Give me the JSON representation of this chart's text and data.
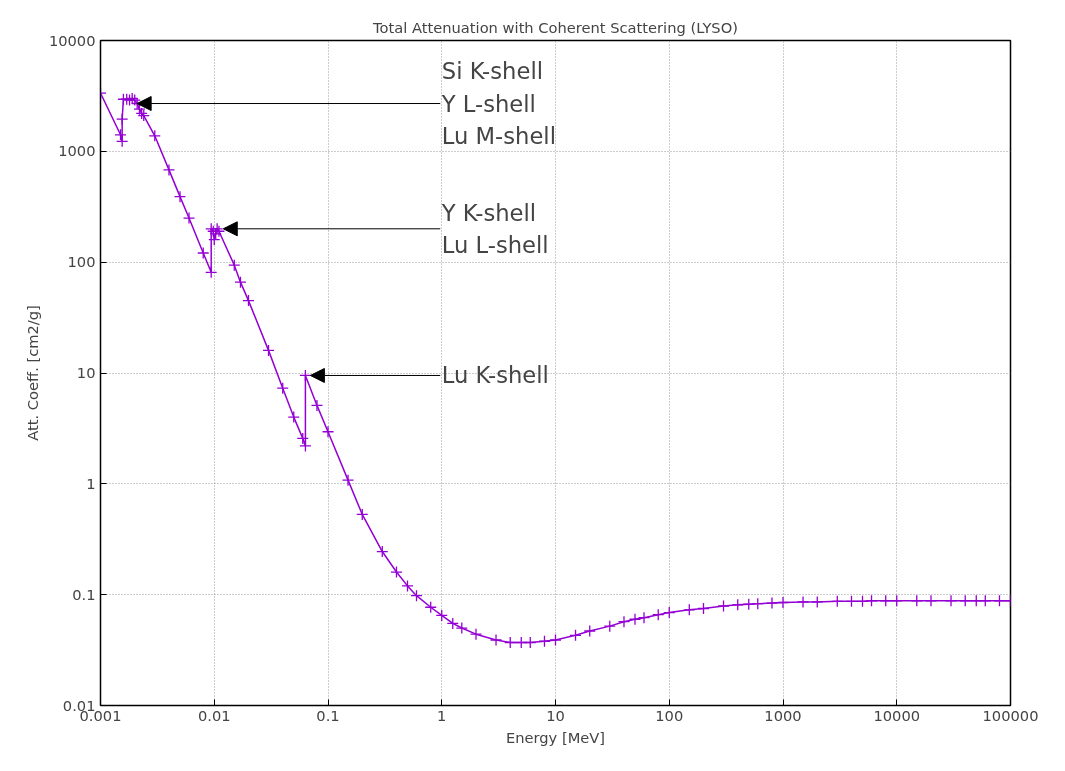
{
  "chart_data": {
    "type": "line",
    "title": "Total Attenuation with Coherent Scattering (LYSO)",
    "xlabel": "Energy [MeV]",
    "ylabel": "Att. Coeff. [cm2/g]",
    "log": "xy",
    "grid": true,
    "marker": "cross",
    "line_style": "solid",
    "xlim": [
      0.001,
      100000
    ],
    "ylim": [
      0.01,
      10000
    ],
    "xticks": [
      0.001,
      0.01,
      0.1,
      1,
      10,
      100,
      1000,
      10000,
      100000
    ],
    "yticks": [
      0.01,
      0.1,
      1,
      10,
      100,
      1000,
      10000
    ],
    "x": [
      0.001,
      0.0015,
      0.00155,
      0.00155,
      0.00159,
      0.0017,
      0.0018,
      0.0019,
      0.002,
      0.0021,
      0.0022,
      0.0023,
      0.0024,
      0.003,
      0.004,
      0.005,
      0.006,
      0.008,
      0.0094,
      0.0094,
      0.0098,
      0.01,
      0.0103,
      0.0106,
      0.011,
      0.015,
      0.017,
      0.02,
      0.03,
      0.04,
      0.05,
      0.06,
      0.0633,
      0.0633,
      0.08,
      0.1,
      0.15,
      0.2,
      0.3,
      0.4,
      0.5,
      0.6,
      0.8,
      1,
      1.25,
      1.5,
      2,
      3,
      4,
      5,
      6,
      8,
      10,
      15,
      20,
      30,
      40,
      50,
      60,
      80,
      100,
      150,
      200,
      300,
      400,
      500,
      600,
      800,
      1000,
      1500,
      2000,
      3000,
      4000,
      5000,
      6000,
      8000,
      10000,
      15000,
      20000,
      30000,
      40000,
      50000,
      60000,
      80000,
      100000
    ],
    "series": [
      {
        "color": "#9400d3",
        "values": [
          3350,
          1410,
          1230,
          1950,
          2950,
          2950,
          2900,
          3000,
          2900,
          2700,
          2400,
          2200,
          2100,
          1380,
          680,
          390,
          250,
          121,
          81,
          200,
          190,
          160,
          180,
          200,
          190,
          94,
          66,
          45,
          16,
          7.3,
          4.0,
          2.57,
          2.2,
          9.5,
          5.1,
          2.95,
          1.08,
          0.53,
          0.245,
          0.16,
          0.12,
          0.098,
          0.077,
          0.065,
          0.055,
          0.05,
          0.044,
          0.039,
          0.037,
          0.037,
          0.037,
          0.038,
          0.039,
          0.043,
          0.047,
          0.052,
          0.057,
          0.06,
          0.062,
          0.066,
          0.069,
          0.073,
          0.075,
          0.079,
          0.081,
          0.082,
          0.083,
          0.084,
          0.085,
          0.086,
          0.086,
          0.087,
          0.087,
          0.087,
          0.088,
          0.088,
          0.088,
          0.088,
          0.088,
          0.088,
          0.088,
          0.088,
          0.088,
          0.088,
          0.088
        ]
      }
    ],
    "annotations": [
      {
        "text": "Si K-shell\nY L-shell\nLu M-shell",
        "x": 0.0021,
        "y": 2700
      },
      {
        "text": "Y K-shell\nLu L-shell",
        "x": 0.012,
        "y": 200
      },
      {
        "text": "Lu K-shell",
        "x": 0.07,
        "y": 9.5
      }
    ]
  }
}
